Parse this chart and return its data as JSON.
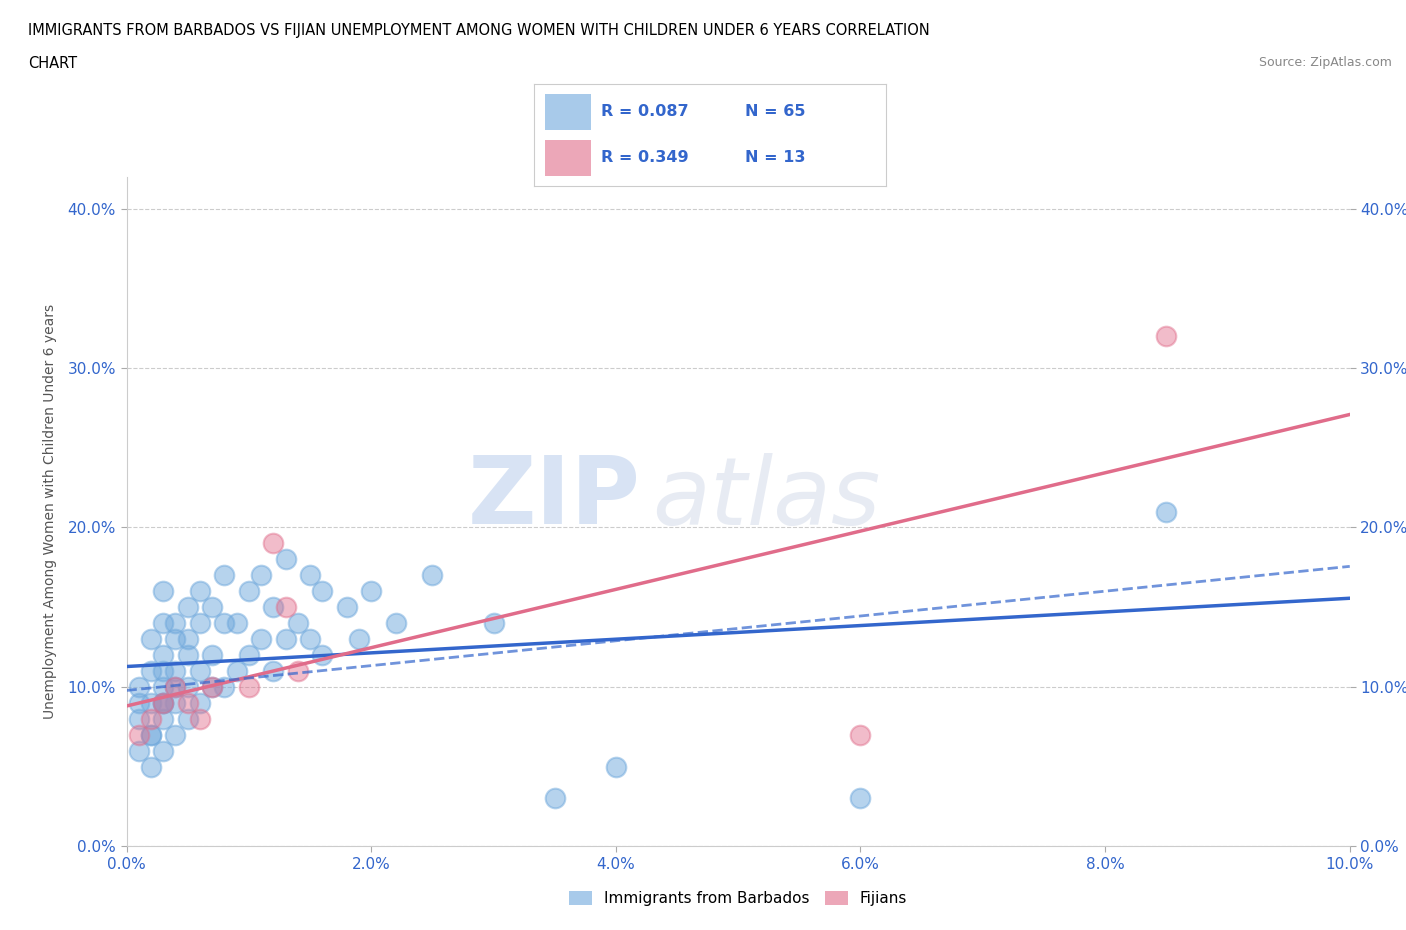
{
  "title_line1": "IMMIGRANTS FROM BARBADOS VS FIJIAN UNEMPLOYMENT AMONG WOMEN WITH CHILDREN UNDER 6 YEARS CORRELATION",
  "title_line2": "CHART",
  "source": "Source: ZipAtlas.com",
  "ylabel": "Unemployment Among Women with Children Under 6 years",
  "xlim": [
    0.0,
    0.1
  ],
  "ylim": [
    0.0,
    0.42
  ],
  "xticks": [
    0.0,
    0.02,
    0.04,
    0.06,
    0.08,
    0.1
  ],
  "xticklabels": [
    "0.0%",
    "2.0%",
    "4.0%",
    "6.0%",
    "8.0%",
    "10.0%"
  ],
  "yticks": [
    0.0,
    0.1,
    0.2,
    0.3,
    0.4
  ],
  "yticklabels": [
    "0.0%",
    "10.0%",
    "20.0%",
    "30.0%",
    "40.0%"
  ],
  "R_blue": 0.087,
  "N_blue": 65,
  "R_pink": 0.349,
  "N_pink": 13,
  "blue_color": "#6fa8dc",
  "pink_color": "#e06c8a",
  "blue_line_color": "#3366cc",
  "pink_line_color": "#e06c8a",
  "legend_blue_label": "Immigrants from Barbados",
  "legend_pink_label": "Fijians",
  "watermark_zip": "ZIP",
  "watermark_atlas": "atlas",
  "background_color": "#ffffff",
  "grid_color": "#cccccc",
  "blue_scatter_x": [
    0.001,
    0.001,
    0.001,
    0.001,
    0.002,
    0.002,
    0.002,
    0.002,
    0.002,
    0.002,
    0.003,
    0.003,
    0.003,
    0.003,
    0.003,
    0.003,
    0.003,
    0.003,
    0.003,
    0.004,
    0.004,
    0.004,
    0.004,
    0.004,
    0.004,
    0.005,
    0.005,
    0.005,
    0.005,
    0.005,
    0.006,
    0.006,
    0.006,
    0.006,
    0.007,
    0.007,
    0.007,
    0.008,
    0.008,
    0.008,
    0.009,
    0.009,
    0.01,
    0.01,
    0.011,
    0.011,
    0.012,
    0.012,
    0.013,
    0.013,
    0.014,
    0.015,
    0.015,
    0.016,
    0.016,
    0.018,
    0.019,
    0.02,
    0.022,
    0.025,
    0.03,
    0.035,
    0.04,
    0.06,
    0.085
  ],
  "blue_scatter_y": [
    0.06,
    0.08,
    0.09,
    0.1,
    0.05,
    0.07,
    0.09,
    0.11,
    0.13,
    0.07,
    0.06,
    0.08,
    0.09,
    0.1,
    0.12,
    0.14,
    0.16,
    0.09,
    0.11,
    0.07,
    0.09,
    0.1,
    0.13,
    0.14,
    0.11,
    0.08,
    0.1,
    0.12,
    0.15,
    0.13,
    0.09,
    0.11,
    0.14,
    0.16,
    0.1,
    0.12,
    0.15,
    0.1,
    0.14,
    0.17,
    0.11,
    0.14,
    0.12,
    0.16,
    0.13,
    0.17,
    0.11,
    0.15,
    0.13,
    0.18,
    0.14,
    0.13,
    0.17,
    0.12,
    0.16,
    0.15,
    0.13,
    0.16,
    0.14,
    0.17,
    0.14,
    0.03,
    0.05,
    0.03,
    0.21
  ],
  "pink_scatter_x": [
    0.001,
    0.002,
    0.003,
    0.004,
    0.005,
    0.006,
    0.007,
    0.01,
    0.012,
    0.013,
    0.014,
    0.06,
    0.085
  ],
  "pink_scatter_y": [
    0.07,
    0.08,
    0.09,
    0.1,
    0.09,
    0.08,
    0.1,
    0.1,
    0.19,
    0.15,
    0.11,
    0.07,
    0.32
  ]
}
